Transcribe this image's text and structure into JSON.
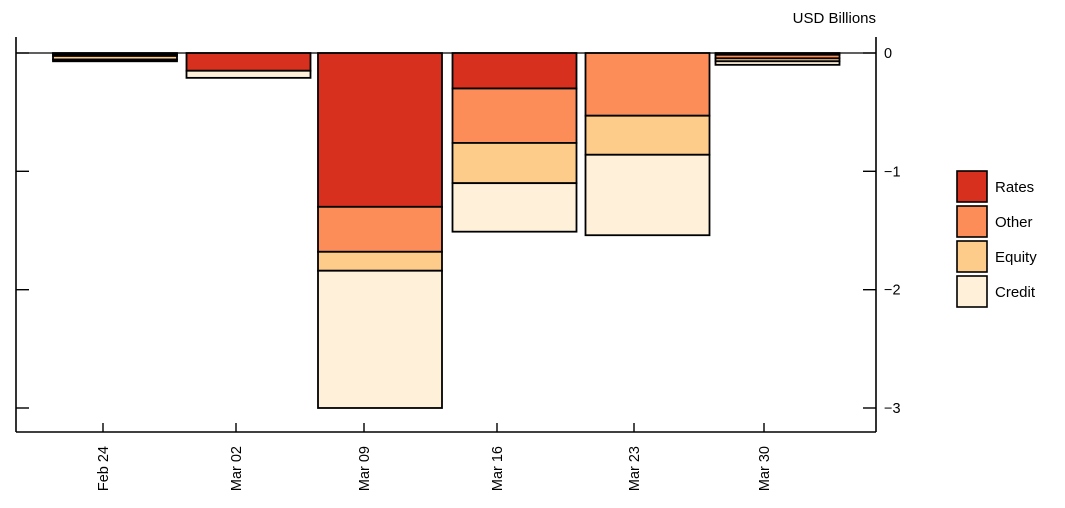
{
  "title": "USD Billions",
  "chart_data": {
    "type": "bar",
    "stacked": true,
    "orientation": "vertical",
    "title": "USD Billions",
    "xlabel": "",
    "ylabel": "USD Billions",
    "categories": [
      "Feb 24",
      "Mar 02",
      "Mar 09",
      "Mar 16",
      "Mar 23",
      "Mar 30"
    ],
    "series": [
      {
        "name": "Rates",
        "color": "#d7301f",
        "values": [
          -0.01,
          -0.15,
          -1.3,
          -0.3,
          0.0,
          -0.015
        ]
      },
      {
        "name": "Other",
        "color": "#fc8d59",
        "values": [
          -0.015,
          0.0,
          -0.38,
          -0.46,
          -0.53,
          -0.03
        ]
      },
      {
        "name": "Equity",
        "color": "#fdcc8a",
        "values": [
          -0.03,
          0.0,
          -0.16,
          -0.34,
          -0.33,
          -0.025
        ]
      },
      {
        "name": "Credit",
        "color": "#fef0d9",
        "values": [
          -0.015,
          -0.06,
          -1.16,
          -0.41,
          -0.68,
          -0.03
        ]
      }
    ],
    "totals": [
      -0.07,
      -0.21,
      -3.0,
      -1.51,
      -1.54,
      -0.1
    ],
    "ylim": [
      -3.2,
      0.14
    ],
    "yticks": [
      0,
      -1,
      -2,
      -3
    ],
    "ytick_labels": [
      "0",
      "−1",
      "−2",
      "−3"
    ],
    "grid": false,
    "legend_position": "right",
    "bar_edge_color": "#000000",
    "axis_color": "#000000"
  }
}
